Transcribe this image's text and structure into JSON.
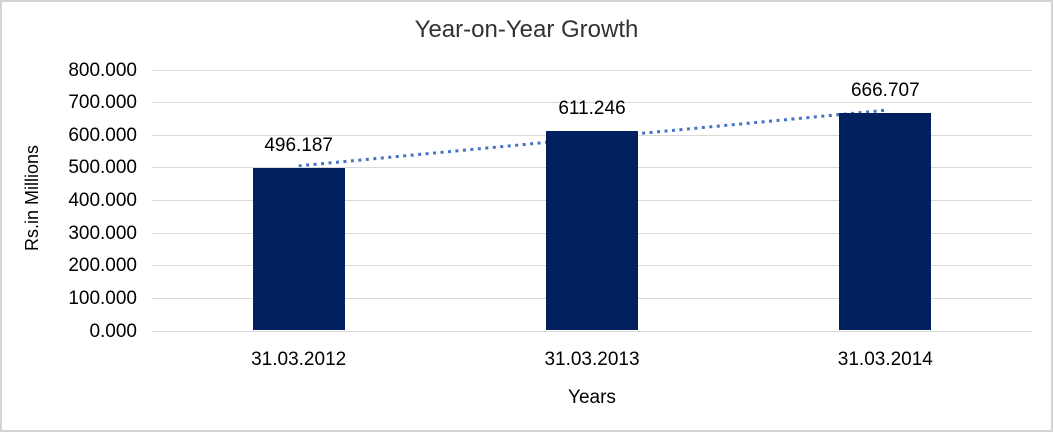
{
  "chart_data": {
    "type": "bar",
    "title": "Year-on-Year Growth",
    "xlabel": "Years",
    "ylabel": "Rs.in Millions",
    "categories": [
      "31.03.2012",
      "31.03.2013",
      "31.03.2014"
    ],
    "values": [
      496.187,
      611.246,
      666.707
    ],
    "data_labels": [
      "496.187",
      "611.246",
      "666.707"
    ],
    "ylim": [
      0,
      800
    ],
    "ytick_step": 100,
    "ytick_labels": [
      "0.000",
      "100.000",
      "200.000",
      "300.000",
      "400.000",
      "500.000",
      "600.000",
      "700.000",
      "800.000"
    ],
    "grid": true,
    "legend": false,
    "trendline": {
      "type": "linear",
      "style": "dotted",
      "color": "#4472c4"
    },
    "colors": {
      "bar": "#002060",
      "gridline": "#d9d9d9",
      "frame_border": "#d3d3d3",
      "title_text": "#333333",
      "label_text": "#000000"
    }
  }
}
